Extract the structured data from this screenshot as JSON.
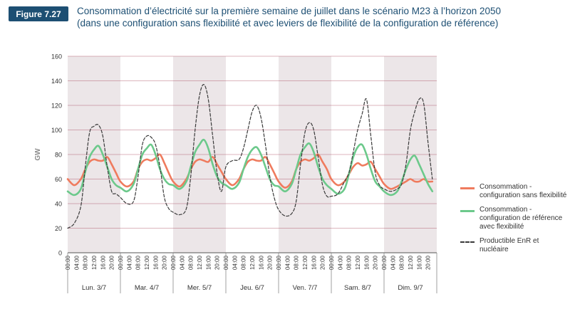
{
  "figure": {
    "badge": "Figure 7.27",
    "title_line1": "Consommation d’électricité sur la première semaine de juillet dans le scénario M23 à l’horizon 2050",
    "title_line2": "(dans une configuration sans flexibilité et avec leviers de flexibilité de la configuration de référence)"
  },
  "colors": {
    "title": "#1d4f73",
    "badge_bg": "#1d4f73",
    "sans_flex": "#ef7b5e",
    "ref_flex": "#6cc98b",
    "productible": "#3a3a3a",
    "shade": "#ece6e8",
    "grid": "#a33b52"
  },
  "chart_data": {
    "type": "line",
    "ylabel": "GW",
    "xlabel": "",
    "ylim": [
      0,
      160
    ],
    "yticks": [
      "0",
      "20",
      "40",
      "60",
      "80",
      "100",
      "120",
      "140",
      "160"
    ],
    "x_hour_ticks": [
      "00:00",
      "04:00",
      "08:00",
      "12:00",
      "16:00",
      "20:00"
    ],
    "days": [
      "Lun. 3/7",
      "Mar. 4/7",
      "Mer. 5/7",
      "Jeu. 6/7",
      "Ven. 7/7",
      "Sam. 8/7",
      "Dim. 9/7"
    ],
    "shaded_days": [
      0,
      2,
      4,
      6
    ],
    "x_hours": [
      0,
      3,
      6,
      8,
      10,
      12,
      14,
      16,
      18,
      20,
      22
    ],
    "series": [
      {
        "name": "Consommation - configuration sans flexibilité",
        "color": "#ef7b5e",
        "style": "solid",
        "daily_values": [
          [
            60,
            55,
            60,
            68,
            74,
            76,
            75,
            75,
            78,
            72,
            65
          ],
          [
            58,
            54,
            58,
            68,
            74,
            76,
            75,
            77,
            80,
            73,
            65
          ],
          [
            58,
            54,
            60,
            68,
            74,
            76,
            75,
            74,
            78,
            72,
            66
          ],
          [
            60,
            55,
            60,
            68,
            74,
            76,
            75,
            75,
            78,
            72,
            65
          ],
          [
            58,
            53,
            58,
            68,
            74,
            76,
            75,
            77,
            80,
            74,
            68
          ],
          [
            60,
            55,
            58,
            64,
            70,
            73,
            71,
            72,
            74,
            68,
            62
          ],
          [
            56,
            52,
            54,
            56,
            58,
            60,
            58,
            58,
            60,
            58,
            58
          ]
        ]
      },
      {
        "name": "Consommation - configuration de référence avec flexibilité",
        "color": "#6cc98b",
        "style": "solid",
        "daily_values": [
          [
            50,
            47,
            52,
            66,
            78,
            84,
            87,
            80,
            70,
            60,
            55
          ],
          [
            53,
            50,
            56,
            68,
            80,
            85,
            88,
            80,
            68,
            60,
            56
          ],
          [
            55,
            52,
            58,
            70,
            82,
            88,
            92,
            85,
            72,
            62,
            57
          ],
          [
            55,
            52,
            57,
            68,
            78,
            84,
            86,
            80,
            70,
            60,
            55
          ],
          [
            54,
            50,
            56,
            68,
            80,
            86,
            89,
            82,
            70,
            60,
            55
          ],
          [
            52,
            48,
            52,
            64,
            78,
            86,
            88,
            80,
            68,
            58,
            54
          ],
          [
            50,
            47,
            50,
            58,
            68,
            76,
            79,
            72,
            64,
            56,
            50
          ]
        ]
      },
      {
        "name": "Productible EnR et nucléaire",
        "color": "#3a3a3a",
        "style": "dashed",
        "daily_values": [
          [
            20,
            24,
            38,
            70,
            98,
            103,
            104,
            95,
            70,
            50,
            48
          ],
          [
            45,
            40,
            42,
            62,
            88,
            95,
            94,
            88,
            70,
            45,
            36
          ],
          [
            33,
            31,
            36,
            62,
            100,
            128,
            137,
            125,
            95,
            65,
            50
          ],
          [
            70,
            75,
            76,
            85,
            100,
            115,
            120,
            110,
            88,
            62,
            45
          ],
          [
            35,
            30,
            32,
            42,
            72,
            98,
            106,
            100,
            78,
            55,
            46
          ],
          [
            46,
            48,
            58,
            65,
            82,
            100,
            113,
            125,
            95,
            65,
            55
          ],
          [
            52,
            50,
            52,
            56,
            72,
            100,
            115,
            125,
            122,
            90,
            60
          ]
        ]
      }
    ],
    "legend": [
      "Consommation - configuration sans flexibilité",
      "Consommation - configuration de référence avec flexibilité",
      "Productible EnR et nucléaire"
    ]
  }
}
